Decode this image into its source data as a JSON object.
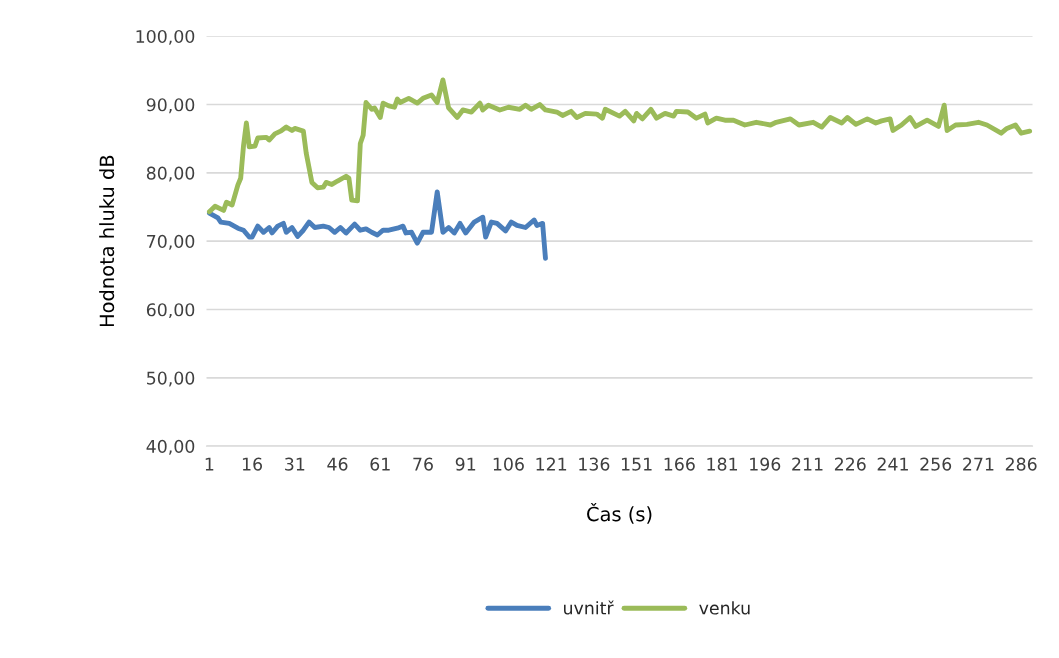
{
  "chart_data": {
    "type": "line",
    "xlabel": "Čas (s)",
    "ylabel": "Hodnota hluku dB",
    "xlim": [
      0,
      290
    ],
    "xticks": [
      1,
      16,
      31,
      46,
      61,
      76,
      91,
      106,
      121,
      136,
      151,
      166,
      181,
      196,
      211,
      226,
      241,
      256,
      271,
      286
    ],
    "ylim": [
      40,
      100
    ],
    "yticks": [
      {
        "value": 40,
        "label": "40,00"
      },
      {
        "value": 50,
        "label": "50,00"
      },
      {
        "value": 60,
        "label": "60,00"
      },
      {
        "value": 70,
        "label": "70,00"
      },
      {
        "value": 80,
        "label": "80,00"
      },
      {
        "value": 90,
        "label": "90,00"
      },
      {
        "value": 100,
        "label": "100,00"
      }
    ],
    "grid": "y",
    "legend": "bottom",
    "marker": "none",
    "line_style": "solid",
    "series": [
      {
        "name": "uvnitř",
        "color": "#4a7ebb",
        "x": [
          1,
          4,
          5,
          8,
          11,
          13,
          15,
          16,
          18,
          20,
          22,
          23,
          25,
          27,
          28,
          30,
          32,
          34,
          36,
          38,
          41,
          43,
          45,
          47,
          49,
          52,
          54,
          56,
          58,
          60,
          62,
          64,
          67,
          69,
          70,
          72,
          74,
          76,
          79,
          81,
          83,
          85,
          87,
          89,
          91,
          94,
          97,
          98,
          100,
          102,
          105,
          107,
          109,
          112,
          115,
          116,
          118,
          119
        ],
        "values": [
          74.1,
          73.4,
          72.8,
          72.6,
          71.9,
          71.6,
          70.6,
          70.6,
          72.2,
          71.3,
          72.0,
          71.2,
          72.2,
          72.6,
          71.3,
          72.0,
          70.7,
          71.6,
          72.8,
          72.0,
          72.2,
          72.0,
          71.3,
          72.0,
          71.2,
          72.5,
          71.6,
          71.8,
          71.3,
          70.9,
          71.6,
          71.6,
          71.9,
          72.2,
          71.2,
          71.3,
          69.7,
          71.3,
          71.3,
          77.2,
          71.3,
          72.0,
          71.2,
          72.6,
          71.2,
          72.8,
          73.5,
          70.6,
          72.8,
          72.6,
          71.5,
          72.8,
          72.3,
          72.0,
          73.1,
          72.3,
          72.6,
          67.5
        ]
      },
      {
        "name": "venku",
        "color": "#9bbb59",
        "x": [
          1,
          3,
          6,
          7,
          9,
          11,
          12,
          13,
          14,
          15,
          17,
          18,
          21,
          22,
          24,
          26,
          28,
          30,
          31,
          34,
          35,
          37,
          39,
          41,
          42,
          44,
          46,
          49,
          50,
          51,
          53,
          54,
          55,
          56,
          58,
          59,
          61,
          62,
          64,
          66,
          67,
          68,
          71,
          74,
          76,
          79,
          81,
          83,
          85,
          88,
          90,
          93,
          96,
          97,
          99,
          103,
          106,
          110,
          112,
          114,
          117,
          119,
          123,
          125,
          128,
          130,
          133,
          137,
          139,
          140,
          145,
          147,
          150,
          151,
          153,
          156,
          158,
          161,
          164,
          165,
          169,
          172,
          175,
          176,
          179,
          182,
          185,
          189,
          193,
          198,
          200,
          205,
          208,
          213,
          216,
          219,
          223,
          225,
          228,
          232,
          235,
          237,
          240,
          241,
          244,
          247,
          249,
          253,
          257,
          259,
          260,
          263,
          267,
          271,
          274,
          279,
          281,
          284,
          286,
          289
        ],
        "values": [
          74.3,
          75.1,
          74.5,
          75.7,
          75.3,
          78.2,
          79.2,
          84.0,
          87.3,
          83.8,
          83.9,
          85.1,
          85.2,
          84.8,
          85.7,
          86.1,
          86.7,
          86.2,
          86.5,
          86.1,
          82.9,
          78.6,
          77.8,
          77.9,
          78.6,
          78.3,
          78.8,
          79.5,
          79.2,
          76.0,
          75.9,
          84.3,
          85.5,
          90.3,
          89.3,
          89.5,
          88.1,
          90.2,
          89.8,
          89.6,
          90.8,
          90.3,
          90.9,
          90.2,
          90.9,
          91.4,
          90.3,
          93.6,
          89.5,
          88.1,
          89.2,
          88.9,
          90.2,
          89.2,
          89.9,
          89.2,
          89.6,
          89.3,
          89.9,
          89.3,
          90.0,
          89.2,
          88.9,
          88.4,
          89.0,
          88.1,
          88.7,
          88.6,
          88.0,
          89.3,
          88.3,
          89.0,
          87.6,
          88.7,
          87.9,
          89.3,
          88.0,
          88.7,
          88.3,
          89.0,
          88.9,
          88.0,
          88.6,
          87.3,
          88.0,
          87.7,
          87.7,
          87.0,
          87.4,
          87.0,
          87.4,
          87.9,
          87.0,
          87.4,
          86.7,
          88.1,
          87.3,
          88.1,
          87.1,
          87.9,
          87.3,
          87.6,
          87.9,
          86.2,
          87.0,
          88.1,
          86.8,
          87.7,
          86.8,
          89.9,
          86.2,
          87.0,
          87.1,
          87.4,
          87.0,
          85.8,
          86.5,
          87.0,
          85.8,
          86.1
        ]
      }
    ]
  }
}
